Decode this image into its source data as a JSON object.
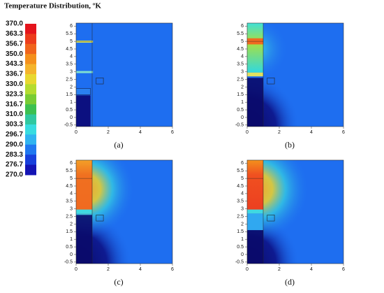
{
  "title": "Temperature Distribution, ºK",
  "colorbar": {
    "labels": [
      "370.0",
      "363.3",
      "356.7",
      "350.0",
      "343.3",
      "336.7",
      "330.0",
      "323.3",
      "316.7",
      "310.0",
      "303.3",
      "296.7",
      "290.0",
      "283.3",
      "276.7",
      "270.0"
    ]
  },
  "axes": {
    "xticks": [
      0,
      2,
      4,
      6
    ],
    "yticks": [
      -0.5,
      0,
      0.5,
      1,
      1.5,
      2,
      2.5,
      3,
      3.5,
      4,
      4.5,
      5,
      5.5,
      6
    ]
  },
  "panels": [
    {
      "label": "(a)"
    },
    {
      "label": "(b)"
    },
    {
      "label": "(c)"
    },
    {
      "label": "(d)"
    }
  ]
}
